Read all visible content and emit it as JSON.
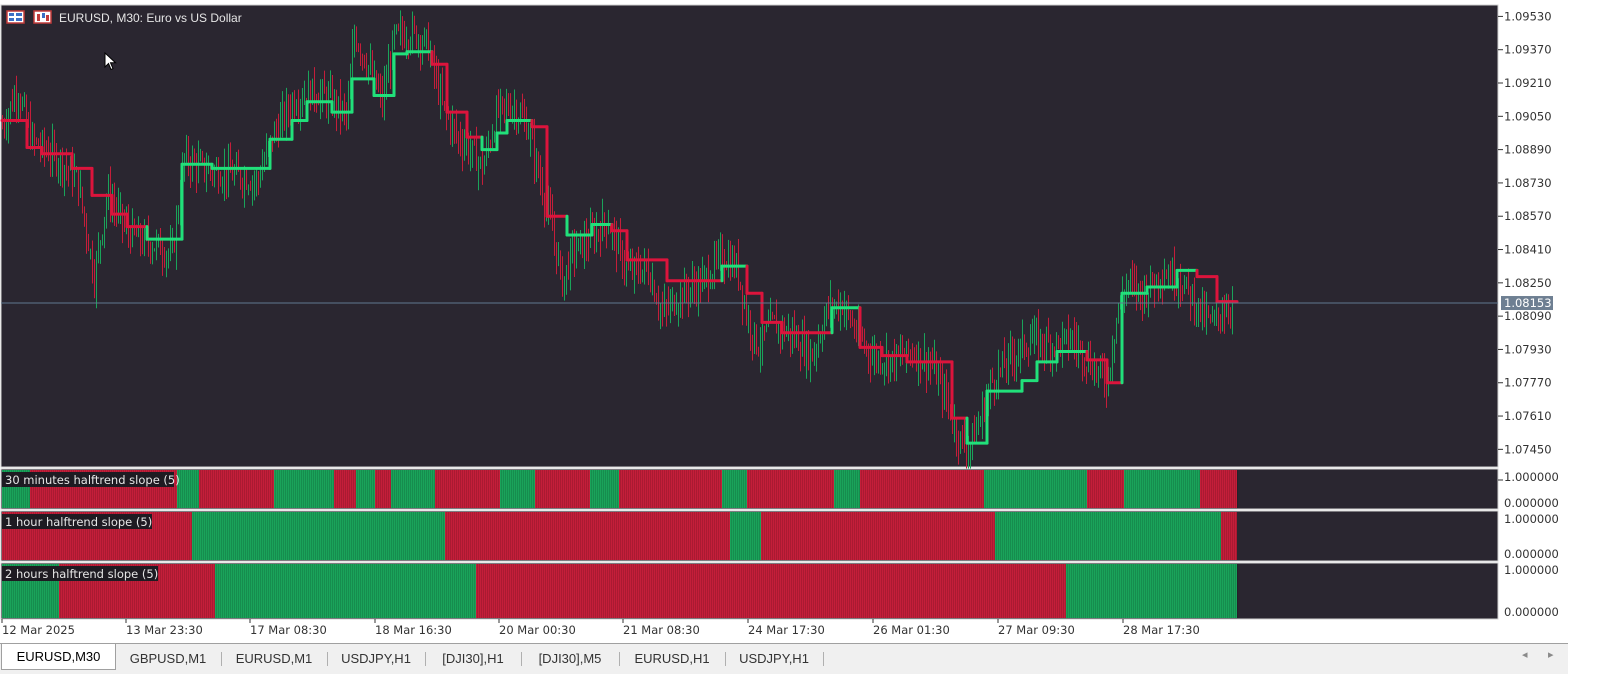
{
  "window": {
    "symbol_label": "EURUSD, M30:  Euro vs US Dollar",
    "icons": [
      "chart-grid-icon",
      "chart-type-icon"
    ]
  },
  "colors": {
    "background": "#2a2630",
    "bull": "#1aa35a",
    "bear": "#c41e3a",
    "halftrend_up": "#21e07a",
    "halftrend_down": "#dc143c",
    "price_line": "#607890",
    "current_price_bg": "#6e7f92",
    "axis_text": "#d9d9d9",
    "panel_border": "#d0d0d0"
  },
  "price_axis": {
    "labels": [
      "1.09530",
      "1.09370",
      "1.09210",
      "1.09050",
      "1.08890",
      "1.08730",
      "1.08570",
      "1.08410",
      "1.08250",
      "1.08090",
      "1.07930",
      "1.07770",
      "1.07610",
      "1.07450"
    ],
    "current_price": "1.08153"
  },
  "time_axis": {
    "labels": [
      "12 Mar 2025",
      "13 Mar 23:30",
      "17 Mar 08:30",
      "18 Mar 16:30",
      "20 Mar 00:30",
      "21 Mar 08:30",
      "24 Mar 17:30",
      "26 Mar 01:30",
      "27 Mar 09:30",
      "28 Mar 17:30"
    ]
  },
  "indicators": [
    {
      "label": "30 minutes halftrend slope  (5)",
      "axis_top": "1.000000",
      "axis_bottom": "0.000000"
    },
    {
      "label": "1 hour halftrend slope  (5)",
      "axis_top": "1.000000",
      "axis_bottom": "0.000000"
    },
    {
      "label": "2 hours halftrend slope  (5)",
      "axis_top": "1.000000",
      "axis_bottom": "0.000000"
    }
  ],
  "tabs": [
    {
      "label": "EURUSD,M30",
      "active": true
    },
    {
      "label": "GBPUSD,M1",
      "active": false
    },
    {
      "label": "EURUSD,M1",
      "active": false
    },
    {
      "label": "USDJPY,H1",
      "active": false
    },
    {
      "label": "[DJI30],H1",
      "active": false
    },
    {
      "label": "[DJI30],M5",
      "active": false
    },
    {
      "label": "EURUSD,H1",
      "active": false
    },
    {
      "label": "USDJPY,H1",
      "active": false
    }
  ],
  "tab_scroll": {
    "left": "◂",
    "right": "▸"
  },
  "chart_data": [
    {
      "type": "candlestick",
      "title": "EURUSD, M30:  Euro vs US Dollar",
      "ylim": [
        1.0737,
        1.0958
      ],
      "yticks": [
        1.0953,
        1.0937,
        1.0921,
        1.0905,
        1.0889,
        1.0873,
        1.0857,
        1.0841,
        1.0825,
        1.0809,
        1.0793,
        1.0777,
        1.0761,
        1.0745
      ],
      "current_price": 1.08153,
      "x_tick_labels": [
        "12 Mar 2025",
        "13 Mar 23:30",
        "17 Mar 08:30",
        "18 Mar 16:30",
        "20 Mar 00:30",
        "21 Mar 08:30",
        "24 Mar 17:30",
        "26 Mar 01:30",
        "27 Mar 09:30",
        "28 Mar 17:30"
      ],
      "price_path": [
        [
          0,
          1.09
        ],
        [
          15,
          1.0918
        ],
        [
          30,
          1.0893
        ],
        [
          55,
          1.0885
        ],
        [
          75,
          1.0875
        ],
        [
          92,
          1.0828
        ],
        [
          105,
          1.0868
        ],
        [
          125,
          1.085
        ],
        [
          140,
          1.0845
        ],
        [
          155,
          1.0843
        ],
        [
          170,
          1.0838
        ],
        [
          182,
          1.0885
        ],
        [
          200,
          1.088
        ],
        [
          230,
          1.0877
        ],
        [
          255,
          1.0874
        ],
        [
          270,
          1.0895
        ],
        [
          290,
          1.0912
        ],
        [
          310,
          1.0917
        ],
        [
          330,
          1.0912
        ],
        [
          345,
          1.0905
        ],
        [
          352,
          1.0945
        ],
        [
          365,
          1.093
        ],
        [
          380,
          1.0912
        ],
        [
          392,
          1.0943
        ],
        [
          410,
          1.0945
        ],
        [
          425,
          1.094
        ],
        [
          440,
          1.091
        ],
        [
          455,
          1.0895
        ],
        [
          470,
          1.0888
        ],
        [
          480,
          1.088
        ],
        [
          495,
          1.0907
        ],
        [
          510,
          1.091
        ],
        [
          525,
          1.09
        ],
        [
          540,
          1.087
        ],
        [
          550,
          1.085
        ],
        [
          560,
          1.0825
        ],
        [
          570,
          1.084
        ],
        [
          585,
          1.0845
        ],
        [
          605,
          1.0855
        ],
        [
          625,
          1.083
        ],
        [
          645,
          1.0832
        ],
        [
          660,
          1.081
        ],
        [
          680,
          1.082
        ],
        [
          700,
          1.0825
        ],
        [
          720,
          1.0838
        ],
        [
          735,
          1.0832
        ],
        [
          745,
          1.0808
        ],
        [
          755,
          1.0795
        ],
        [
          770,
          1.0805
        ],
        [
          790,
          1.08
        ],
        [
          810,
          1.079
        ],
        [
          825,
          1.0812
        ],
        [
          840,
          1.0815
        ],
        [
          855,
          1.08
        ],
        [
          870,
          1.079
        ],
        [
          890,
          1.0788
        ],
        [
          910,
          1.0792
        ],
        [
          930,
          1.0785
        ],
        [
          945,
          1.0768
        ],
        [
          955,
          1.0752
        ],
        [
          965,
          1.0745
        ],
        [
          975,
          1.0755
        ],
        [
          990,
          1.0778
        ],
        [
          1010,
          1.079
        ],
        [
          1030,
          1.0798
        ],
        [
          1050,
          1.0795
        ],
        [
          1070,
          1.0798
        ],
        [
          1090,
          1.0785
        ],
        [
          1105,
          1.0778
        ],
        [
          1115,
          1.0812
        ],
        [
          1125,
          1.0825
        ],
        [
          1140,
          1.082
        ],
        [
          1160,
          1.083
        ],
        [
          1175,
          1.0828
        ],
        [
          1190,
          1.0818
        ],
        [
          1200,
          1.081
        ],
        [
          1210,
          1.0805
        ],
        [
          1220,
          1.0812
        ],
        [
          1230,
          1.0815
        ]
      ],
      "halftrend": {
        "steps": [
          {
            "x0": 0,
            "x1": 25,
            "y": 1.0903,
            "trend": "down"
          },
          {
            "x0": 25,
            "x1": 40,
            "y": 1.089,
            "trend": "down"
          },
          {
            "x0": 40,
            "x1": 70,
            "y": 1.0887,
            "trend": "down"
          },
          {
            "x0": 70,
            "x1": 90,
            "y": 1.088,
            "trend": "down"
          },
          {
            "x0": 90,
            "x1": 110,
            "y": 1.0867,
            "trend": "down"
          },
          {
            "x0": 110,
            "x1": 125,
            "y": 1.0858,
            "trend": "down"
          },
          {
            "x0": 125,
            "x1": 145,
            "y": 1.0852,
            "trend": "down"
          },
          {
            "x0": 145,
            "x1": 180,
            "y": 1.0846,
            "trend": "up"
          },
          {
            "x0": 180,
            "x1": 210,
            "y": 1.0882,
            "trend": "up"
          },
          {
            "x0": 210,
            "x1": 268,
            "y": 1.088,
            "trend": "up"
          },
          {
            "x0": 268,
            "x1": 290,
            "y": 1.0894,
            "trend": "up"
          },
          {
            "x0": 290,
            "x1": 305,
            "y": 1.0903,
            "trend": "up"
          },
          {
            "x0": 305,
            "x1": 330,
            "y": 1.0912,
            "trend": "up"
          },
          {
            "x0": 330,
            "x1": 350,
            "y": 1.0907,
            "trend": "up"
          },
          {
            "x0": 350,
            "x1": 372,
            "y": 1.0923,
            "trend": "up"
          },
          {
            "x0": 372,
            "x1": 392,
            "y": 1.0915,
            "trend": "up"
          },
          {
            "x0": 392,
            "x1": 405,
            "y": 1.0935,
            "trend": "up"
          },
          {
            "x0": 405,
            "x1": 430,
            "y": 1.0936,
            "trend": "up"
          },
          {
            "x0": 430,
            "x1": 445,
            "y": 1.093,
            "trend": "down"
          },
          {
            "x0": 445,
            "x1": 465,
            "y": 1.0907,
            "trend": "down"
          },
          {
            "x0": 465,
            "x1": 480,
            "y": 1.0895,
            "trend": "down"
          },
          {
            "x0": 480,
            "x1": 495,
            "y": 1.0889,
            "trend": "up"
          },
          {
            "x0": 495,
            "x1": 505,
            "y": 1.0897,
            "trend": "up"
          },
          {
            "x0": 505,
            "x1": 530,
            "y": 1.0903,
            "trend": "up"
          },
          {
            "x0": 530,
            "x1": 545,
            "y": 1.09,
            "trend": "down"
          },
          {
            "x0": 545,
            "x1": 565,
            "y": 1.0857,
            "trend": "down"
          },
          {
            "x0": 565,
            "x1": 590,
            "y": 1.0848,
            "trend": "up"
          },
          {
            "x0": 590,
            "x1": 610,
            "y": 1.0853,
            "trend": "up"
          },
          {
            "x0": 610,
            "x1": 625,
            "y": 1.085,
            "trend": "down"
          },
          {
            "x0": 625,
            "x1": 665,
            "y": 1.0836,
            "trend": "down"
          },
          {
            "x0": 665,
            "x1": 720,
            "y": 1.0826,
            "trend": "down"
          },
          {
            "x0": 720,
            "x1": 745,
            "y": 1.0833,
            "trend": "up"
          },
          {
            "x0": 745,
            "x1": 760,
            "y": 1.082,
            "trend": "down"
          },
          {
            "x0": 760,
            "x1": 780,
            "y": 1.0806,
            "trend": "down"
          },
          {
            "x0": 780,
            "x1": 830,
            "y": 1.0801,
            "trend": "down"
          },
          {
            "x0": 830,
            "x1": 858,
            "y": 1.0813,
            "trend": "up"
          },
          {
            "x0": 858,
            "x1": 880,
            "y": 1.0794,
            "trend": "down"
          },
          {
            "x0": 880,
            "x1": 905,
            "y": 1.079,
            "trend": "down"
          },
          {
            "x0": 905,
            "x1": 950,
            "y": 1.0787,
            "trend": "down"
          },
          {
            "x0": 950,
            "x1": 965,
            "y": 1.076,
            "trend": "down"
          },
          {
            "x0": 965,
            "x1": 985,
            "y": 1.0748,
            "trend": "up"
          },
          {
            "x0": 985,
            "x1": 1020,
            "y": 1.0773,
            "trend": "up"
          },
          {
            "x0": 1020,
            "x1": 1035,
            "y": 1.0778,
            "trend": "up"
          },
          {
            "x0": 1035,
            "x1": 1055,
            "y": 1.0787,
            "trend": "up"
          },
          {
            "x0": 1055,
            "x1": 1085,
            "y": 1.0792,
            "trend": "up"
          },
          {
            "x0": 1085,
            "x1": 1105,
            "y": 1.0788,
            "trend": "down"
          },
          {
            "x0": 1105,
            "x1": 1120,
            "y": 1.0777,
            "trend": "down"
          },
          {
            "x0": 1120,
            "x1": 1145,
            "y": 1.082,
            "trend": "up"
          },
          {
            "x0": 1145,
            "x1": 1175,
            "y": 1.0823,
            "trend": "up"
          },
          {
            "x0": 1175,
            "x1": 1195,
            "y": 1.0831,
            "trend": "up"
          },
          {
            "x0": 1195,
            "x1": 1215,
            "y": 1.0828,
            "trend": "down"
          },
          {
            "x0": 1215,
            "x1": 1235,
            "y": 1.0816,
            "trend": "down"
          }
        ]
      }
    },
    {
      "type": "heatmap",
      "title": "30 minutes halftrend slope  (5)",
      "ylim": [
        0,
        1
      ],
      "segments": [
        {
          "x0": 0,
          "x1": 28,
          "value": 1
        },
        {
          "x0": 28,
          "x1": 175,
          "value": 0
        },
        {
          "x0": 175,
          "x1": 197,
          "value": 1
        },
        {
          "x0": 197,
          "x1": 272,
          "value": 0
        },
        {
          "x0": 272,
          "x1": 332,
          "value": 1
        },
        {
          "x0": 332,
          "x1": 354,
          "value": 0
        },
        {
          "x0": 354,
          "x1": 373,
          "value": 1
        },
        {
          "x0": 373,
          "x1": 389,
          "value": 0
        },
        {
          "x0": 389,
          "x1": 433,
          "value": 1
        },
        {
          "x0": 433,
          "x1": 498,
          "value": 0
        },
        {
          "x0": 498,
          "x1": 533,
          "value": 1
        },
        {
          "x0": 533,
          "x1": 588,
          "value": 0
        },
        {
          "x0": 588,
          "x1": 617,
          "value": 1
        },
        {
          "x0": 617,
          "x1": 720,
          "value": 0
        },
        {
          "x0": 720,
          "x1": 745,
          "value": 1
        },
        {
          "x0": 745,
          "x1": 832,
          "value": 0
        },
        {
          "x0": 832,
          "x1": 858,
          "value": 1
        },
        {
          "x0": 858,
          "x1": 982,
          "value": 0
        },
        {
          "x0": 982,
          "x1": 1085,
          "value": 1
        },
        {
          "x0": 1085,
          "x1": 1122,
          "value": 0
        },
        {
          "x0": 1122,
          "x1": 1198,
          "value": 1
        },
        {
          "x0": 1198,
          "x1": 1235,
          "value": 0
        }
      ]
    },
    {
      "type": "heatmap",
      "title": "1 hour halftrend slope  (5)",
      "ylim": [
        0,
        1
      ],
      "segments": [
        {
          "x0": 0,
          "x1": 190,
          "value": 0
        },
        {
          "x0": 190,
          "x1": 443,
          "value": 1
        },
        {
          "x0": 443,
          "x1": 728,
          "value": 0
        },
        {
          "x0": 728,
          "x1": 759,
          "value": 1
        },
        {
          "x0": 759,
          "x1": 993,
          "value": 0
        },
        {
          "x0": 993,
          "x1": 1219,
          "value": 1
        },
        {
          "x0": 1219,
          "x1": 1235,
          "value": 0
        }
      ]
    },
    {
      "type": "heatmap",
      "title": "2 hours halftrend slope  (5)",
      "ylim": [
        0,
        1
      ],
      "segments": [
        {
          "x0": 0,
          "x1": 57,
          "value": 1
        },
        {
          "x0": 57,
          "x1": 213,
          "value": 0
        },
        {
          "x0": 213,
          "x1": 474,
          "value": 1
        },
        {
          "x0": 474,
          "x1": 1064,
          "value": 0
        },
        {
          "x0": 1064,
          "x1": 1235,
          "value": 1
        }
      ]
    }
  ]
}
